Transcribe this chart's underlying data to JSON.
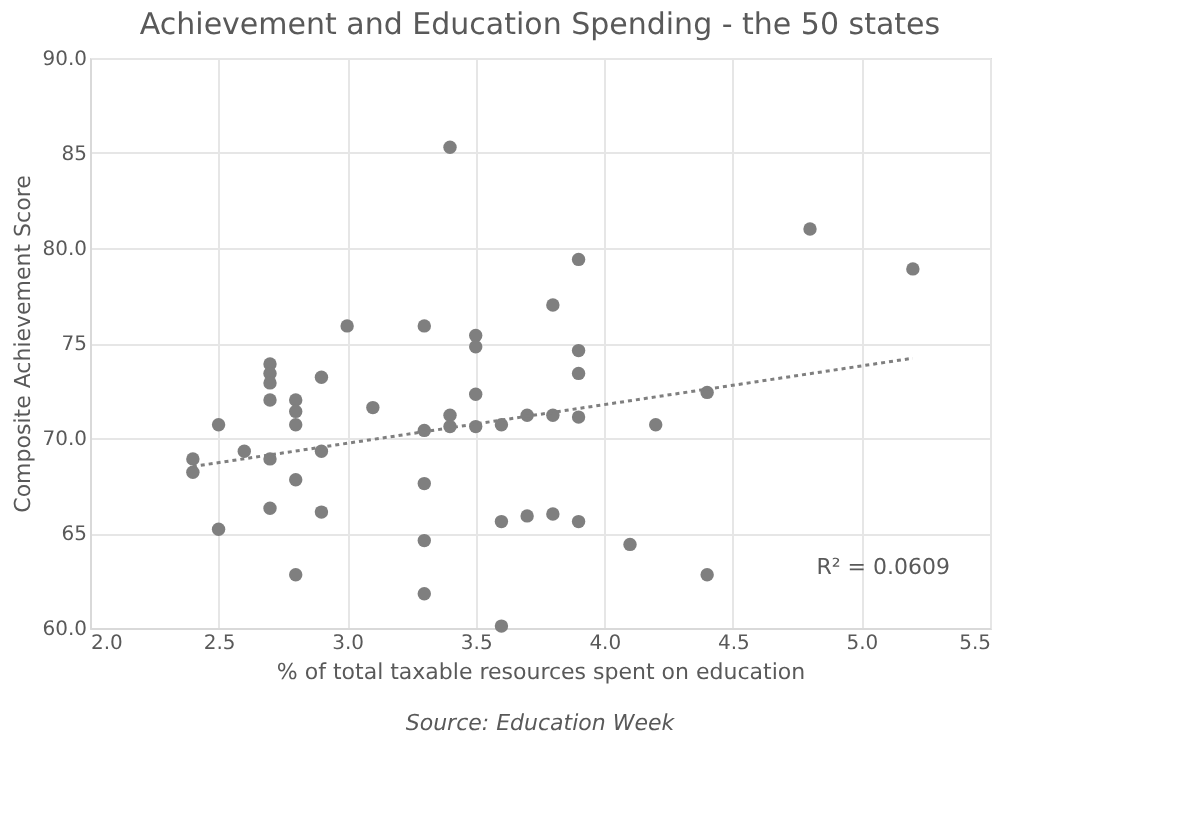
{
  "chart_data": {
    "type": "scatter",
    "title": "Achievement and Education Spending - the 50 states",
    "xlabel": "% of total  taxable resources spent on education",
    "ylabel": "Composite Achievement Score",
    "annotations": [
      "Source: Education Week",
      "R² = 0.0609"
    ],
    "xlim": [
      2.0,
      5.5
    ],
    "xticks": [
      {
        "value": 2.0,
        "label": "2.0"
      },
      2.5,
      {
        "value": 3.0,
        "label": "3.0"
      },
      3.5,
      {
        "value": 4.0,
        "label": "4.0"
      },
      4.5,
      {
        "value": 5.0,
        "label": "5.0"
      },
      5.5
    ],
    "ylim": [
      60,
      90
    ],
    "yticks": [
      {
        "value": 60,
        "label": "60.0"
      },
      65,
      {
        "value": 70,
        "label": "70.0"
      },
      75,
      {
        "value": 80,
        "label": "80.0"
      },
      85,
      {
        "value": 90,
        "label": "90.0"
      }
    ],
    "grid": true,
    "series": [
      {
        "color": "#7f7f7f",
        "marker": "circle",
        "x": [
          2.4,
          2.4,
          2.5,
          2.5,
          2.6,
          2.7,
          2.7,
          2.7,
          2.7,
          2.7,
          2.7,
          2.8,
          2.8,
          2.8,
          2.8,
          2.8,
          2.9,
          2.9,
          2.9,
          3.0,
          3.1,
          3.3,
          3.3,
          3.3,
          3.3,
          3.3,
          3.4,
          3.4,
          3.4,
          3.5,
          3.5,
          3.5,
          3.5,
          3.6,
          3.6,
          3.6,
          3.7,
          3.7,
          3.8,
          3.8,
          3.8,
          3.9,
          3.9,
          3.9,
          3.9,
          3.9,
          4.1,
          4.2,
          4.4,
          4.4,
          4.8,
          5.2
        ],
        "values": [
          68.9,
          68.2,
          70.7,
          65.2,
          69.3,
          73.9,
          73.4,
          72.9,
          72.0,
          68.9,
          66.3,
          72.0,
          71.4,
          70.7,
          67.8,
          62.8,
          73.2,
          69.3,
          66.1,
          75.9,
          71.6,
          75.9,
          70.4,
          67.6,
          64.6,
          61.8,
          85.3,
          71.2,
          70.6,
          75.4,
          74.8,
          72.3,
          70.6,
          70.7,
          65.6,
          60.1,
          71.2,
          65.9,
          77.0,
          71.2,
          66.0,
          79.4,
          74.6,
          73.4,
          71.1,
          65.6,
          64.4,
          70.7,
          72.4,
          62.8,
          81.0,
          78.9
        ]
      },
      {
        "type": "line",
        "color": "#7f7f7f",
        "line_style": "dotted",
        "marker": "none",
        "x": [
          2.4,
          5.2
        ],
        "values": [
          68.5,
          74.2
        ]
      }
    ]
  }
}
